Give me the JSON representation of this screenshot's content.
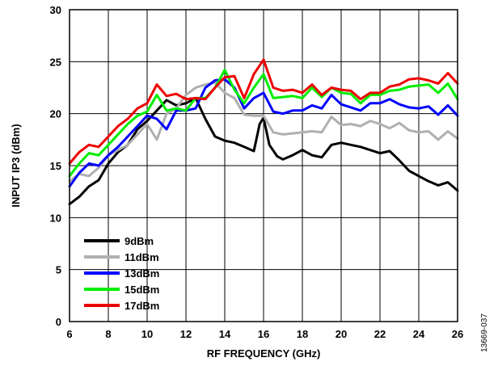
{
  "chart_data": {
    "type": "line",
    "title": "",
    "xlabel": "RF FREQUENCY (GHz)",
    "ylabel": "INPUT IP3 (dBm)",
    "xlim": [
      6,
      26
    ],
    "ylim": [
      0,
      30
    ],
    "xticks": [
      6,
      8,
      10,
      12,
      14,
      16,
      18,
      20,
      22,
      24,
      26
    ],
    "yticks": [
      0,
      5,
      10,
      15,
      20,
      25,
      30
    ],
    "grid": true,
    "legend_position": "bottom-left",
    "figure_id": "13669-037",
    "series": [
      {
        "name": "9dBm",
        "color": "#000000",
        "points": [
          [
            6,
            11.3
          ],
          [
            6.5,
            12.0
          ],
          [
            7,
            13.0
          ],
          [
            7.5,
            13.6
          ],
          [
            8,
            15.2
          ],
          [
            8.5,
            16.3
          ],
          [
            9,
            17.0
          ],
          [
            9.5,
            18.5
          ],
          [
            10,
            19.3
          ],
          [
            10.5,
            20.3
          ],
          [
            11,
            21.3
          ],
          [
            11.5,
            20.8
          ],
          [
            12,
            21.0
          ],
          [
            12.5,
            21.5
          ],
          [
            13,
            19.5
          ],
          [
            13.5,
            17.8
          ],
          [
            14,
            17.4
          ],
          [
            14.5,
            17.2
          ],
          [
            15,
            16.8
          ],
          [
            15.5,
            16.4
          ],
          [
            15.8,
            19.0
          ],
          [
            16,
            19.6
          ],
          [
            16.3,
            17.0
          ],
          [
            16.7,
            15.9
          ],
          [
            17,
            15.6
          ],
          [
            17.5,
            16.0
          ],
          [
            18,
            16.5
          ],
          [
            18.5,
            16.0
          ],
          [
            19,
            15.8
          ],
          [
            19.5,
            17.0
          ],
          [
            20,
            17.2
          ],
          [
            20.5,
            17.0
          ],
          [
            21,
            16.8
          ],
          [
            21.5,
            16.5
          ],
          [
            22,
            16.2
          ],
          [
            22.5,
            16.4
          ],
          [
            23,
            15.5
          ],
          [
            23.5,
            14.5
          ],
          [
            24,
            14.0
          ],
          [
            24.5,
            13.5
          ],
          [
            25,
            13.1
          ],
          [
            25.5,
            13.4
          ],
          [
            26,
            12.6
          ]
        ]
      },
      {
        "name": "11dBm",
        "color": "#b0b0b0",
        "points": [
          [
            6,
            13.5
          ],
          [
            6.5,
            14.2
          ],
          [
            7,
            14.0
          ],
          [
            7.5,
            14.8
          ],
          [
            8,
            16.0
          ],
          [
            8.5,
            16.5
          ],
          [
            9,
            17.0
          ],
          [
            9.5,
            18.0
          ],
          [
            10,
            19.0
          ],
          [
            10.5,
            17.5
          ],
          [
            11,
            20.0
          ],
          [
            11.5,
            20.5
          ],
          [
            12,
            21.8
          ],
          [
            12.5,
            22.5
          ],
          [
            13,
            22.8
          ],
          [
            13.5,
            23.0
          ],
          [
            14,
            22.0
          ],
          [
            14.5,
            21.5
          ],
          [
            15,
            19.9
          ],
          [
            15.5,
            19.8
          ],
          [
            16,
            19.8
          ],
          [
            16.5,
            18.2
          ],
          [
            17,
            18.0
          ],
          [
            17.5,
            18.1
          ],
          [
            18,
            18.2
          ],
          [
            18.5,
            18.3
          ],
          [
            19,
            18.2
          ],
          [
            19.5,
            19.7
          ],
          [
            20,
            18.9
          ],
          [
            20.5,
            19.0
          ],
          [
            21,
            18.8
          ],
          [
            21.5,
            19.3
          ],
          [
            22,
            19.0
          ],
          [
            22.5,
            18.6
          ],
          [
            23,
            19.1
          ],
          [
            23.5,
            18.4
          ],
          [
            24,
            18.2
          ],
          [
            24.5,
            18.3
          ],
          [
            25,
            17.5
          ],
          [
            25.5,
            18.3
          ],
          [
            26,
            17.6
          ]
        ]
      },
      {
        "name": "13dBm",
        "color": "#0000ff",
        "points": [
          [
            6,
            13.0
          ],
          [
            6.5,
            14.3
          ],
          [
            7,
            15.2
          ],
          [
            7.5,
            15.0
          ],
          [
            8,
            16.0
          ],
          [
            8.5,
            16.8
          ],
          [
            9,
            17.8
          ],
          [
            9.5,
            18.8
          ],
          [
            10,
            19.8
          ],
          [
            10.5,
            19.5
          ],
          [
            11,
            18.5
          ],
          [
            11.5,
            20.3
          ],
          [
            12,
            20.3
          ],
          [
            12.5,
            20.5
          ],
          [
            13,
            22.5
          ],
          [
            13.5,
            23.2
          ],
          [
            14,
            23.3
          ],
          [
            14.5,
            22.5
          ],
          [
            15,
            20.5
          ],
          [
            15.5,
            21.5
          ],
          [
            16,
            22.0
          ],
          [
            16.5,
            20.2
          ],
          [
            17,
            20.0
          ],
          [
            17.5,
            20.3
          ],
          [
            18,
            20.3
          ],
          [
            18.5,
            20.8
          ],
          [
            19,
            20.5
          ],
          [
            19.5,
            21.8
          ],
          [
            20,
            20.9
          ],
          [
            20.5,
            20.6
          ],
          [
            21,
            20.3
          ],
          [
            21.5,
            21.0
          ],
          [
            22,
            21.0
          ],
          [
            22.5,
            21.4
          ],
          [
            23,
            20.9
          ],
          [
            23.5,
            20.6
          ],
          [
            24,
            20.5
          ],
          [
            24.5,
            20.7
          ],
          [
            25,
            19.9
          ],
          [
            25.5,
            20.8
          ],
          [
            26,
            19.8
          ]
        ]
      },
      {
        "name": "15dBm",
        "color": "#00ee00",
        "points": [
          [
            6,
            14.0
          ],
          [
            6.5,
            15.2
          ],
          [
            7,
            16.2
          ],
          [
            7.5,
            16.0
          ],
          [
            8,
            17.0
          ],
          [
            8.5,
            18.0
          ],
          [
            9,
            19.0
          ],
          [
            9.5,
            19.8
          ],
          [
            10,
            20.2
          ],
          [
            10.5,
            21.8
          ],
          [
            11,
            20.3
          ],
          [
            11.5,
            20.5
          ],
          [
            12,
            20.3
          ],
          [
            12.5,
            21.5
          ],
          [
            13,
            21.5
          ],
          [
            13.5,
            22.5
          ],
          [
            14,
            24.2
          ],
          [
            14.5,
            22.3
          ],
          [
            15,
            21.0
          ],
          [
            15.5,
            22.5
          ],
          [
            16,
            23.8
          ],
          [
            16.5,
            21.5
          ],
          [
            17,
            21.6
          ],
          [
            17.5,
            21.7
          ],
          [
            18,
            21.5
          ],
          [
            18.5,
            22.5
          ],
          [
            19,
            21.6
          ],
          [
            19.5,
            22.5
          ],
          [
            20,
            22.0
          ],
          [
            20.5,
            21.9
          ],
          [
            21,
            21.0
          ],
          [
            21.5,
            21.8
          ],
          [
            22,
            21.8
          ],
          [
            22.5,
            22.2
          ],
          [
            23,
            22.3
          ],
          [
            23.5,
            22.6
          ],
          [
            24,
            22.7
          ],
          [
            24.5,
            22.8
          ],
          [
            25,
            22.0
          ],
          [
            25.5,
            22.9
          ],
          [
            26,
            21.4
          ]
        ]
      },
      {
        "name": "17dBm",
        "color": "#ee0000",
        "points": [
          [
            6,
            15.2
          ],
          [
            6.5,
            16.3
          ],
          [
            7,
            17.0
          ],
          [
            7.5,
            16.8
          ],
          [
            8,
            17.8
          ],
          [
            8.5,
            18.8
          ],
          [
            9,
            19.5
          ],
          [
            9.5,
            20.5
          ],
          [
            10,
            21.0
          ],
          [
            10.5,
            22.8
          ],
          [
            11,
            21.7
          ],
          [
            11.5,
            21.9
          ],
          [
            12,
            21.4
          ],
          [
            12.5,
            21.5
          ],
          [
            13,
            21.4
          ],
          [
            13.5,
            22.5
          ],
          [
            14,
            23.5
          ],
          [
            14.5,
            23.6
          ],
          [
            15,
            21.5
          ],
          [
            15.5,
            23.8
          ],
          [
            16,
            25.2
          ],
          [
            16.5,
            22.5
          ],
          [
            17,
            22.2
          ],
          [
            17.5,
            22.3
          ],
          [
            18,
            22.0
          ],
          [
            18.5,
            22.8
          ],
          [
            19,
            21.8
          ],
          [
            19.5,
            22.5
          ],
          [
            20,
            22.3
          ],
          [
            20.5,
            22.2
          ],
          [
            21,
            21.4
          ],
          [
            21.5,
            22.0
          ],
          [
            22,
            22.0
          ],
          [
            22.5,
            22.6
          ],
          [
            23,
            22.8
          ],
          [
            23.5,
            23.3
          ],
          [
            24,
            23.4
          ],
          [
            24.5,
            23.2
          ],
          [
            25,
            22.9
          ],
          [
            25.5,
            23.9
          ],
          [
            26,
            22.9
          ]
        ]
      }
    ]
  }
}
